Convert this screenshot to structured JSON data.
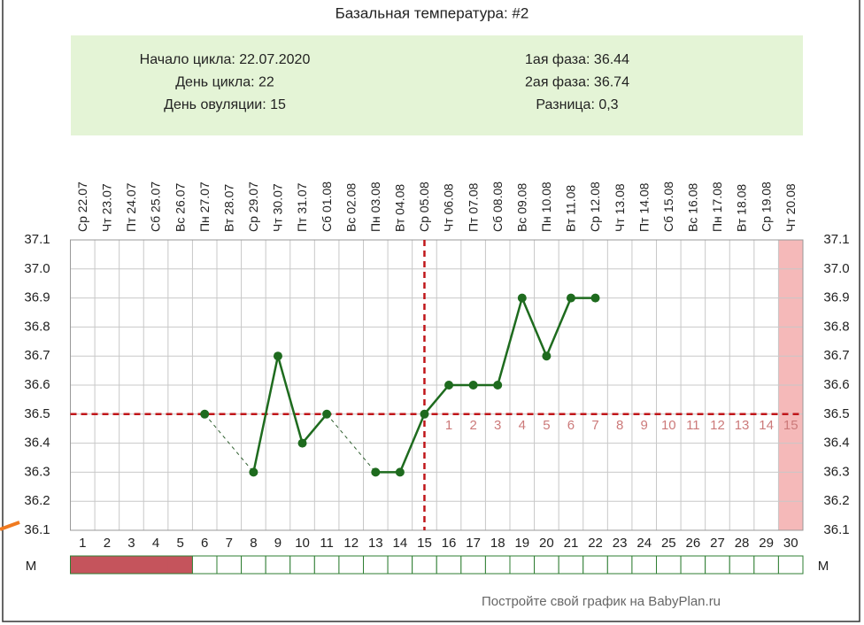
{
  "chart_data": {
    "type": "line",
    "title": "Базальная температура: #2",
    "info": {
      "left": [
        "Начало цикла: 22.07.2020",
        "День цикла: 22",
        "День овуляции: 15"
      ],
      "right": [
        "1ая фаза: 36.44",
        "2ая фаза: 36.74",
        "Разница: 0,3"
      ]
    },
    "categories": [
      1,
      2,
      3,
      4,
      5,
      6,
      7,
      8,
      9,
      10,
      11,
      12,
      13,
      14,
      15,
      16,
      17,
      18,
      19,
      20,
      21,
      22,
      23,
      24,
      25,
      26,
      27,
      28,
      29,
      30
    ],
    "dates": [
      "Ср 22.07",
      "Чт 23.07",
      "Пт 24.07",
      "Сб 25.07",
      "Вс 26.07",
      "Пн 27.07",
      "Вт 28.07",
      "Ср 29.07",
      "Чт 30.07",
      "Пт 31.07",
      "Сб 01.08",
      "Вс 02.08",
      "Пн 03.08",
      "Вт 04.08",
      "Ср 05.08",
      "Чт 06.08",
      "Пт 07.08",
      "Сб 08.08",
      "Вс 09.08",
      "Пн 10.08",
      "Вт 11.08",
      "Ср 12.08",
      "Чт 13.08",
      "Пт 14.08",
      "Сб 15.08",
      "Вс 16.08",
      "Пн 17.08",
      "Вт 18.08",
      "Ср 19.08",
      "Чт 20.08"
    ],
    "series": [
      {
        "color": "#1e6b1e",
        "values": [
          null,
          null,
          null,
          null,
          null,
          36.5,
          null,
          36.3,
          36.7,
          36.4,
          36.5,
          null,
          36.3,
          36.3,
          36.5,
          36.6,
          36.6,
          36.6,
          36.9,
          36.7,
          36.9,
          36.9,
          null,
          null,
          null,
          null,
          null,
          null,
          null,
          null
        ]
      }
    ],
    "ylim": [
      36.1,
      37.1
    ],
    "yticks": [
      36.1,
      36.2,
      36.3,
      36.4,
      36.5,
      36.6,
      36.7,
      36.8,
      36.9,
      {
        "value": 37.0,
        "label": "37.0"
      },
      37.1
    ],
    "grid": true,
    "coverline": 36.5,
    "ovulation_day": 15,
    "highlight_day": 30,
    "post_ovulation_days": [
      null,
      null,
      null,
      null,
      null,
      null,
      null,
      null,
      null,
      null,
      null,
      null,
      null,
      null,
      null,
      1,
      2,
      3,
      4,
      5,
      6,
      7,
      8,
      9,
      10,
      11,
      12,
      13,
      14,
      15
    ],
    "menstruation_label": "М",
    "menstruation": [
      true,
      true,
      true,
      true,
      true,
      false,
      false,
      false,
      false,
      false,
      false,
      false,
      false,
      false,
      false,
      false,
      false,
      false,
      false,
      false,
      false,
      false,
      false,
      false,
      false,
      false,
      false,
      false,
      false,
      false
    ],
    "footer": "Постройте свой график на BabyPlan.ru"
  }
}
